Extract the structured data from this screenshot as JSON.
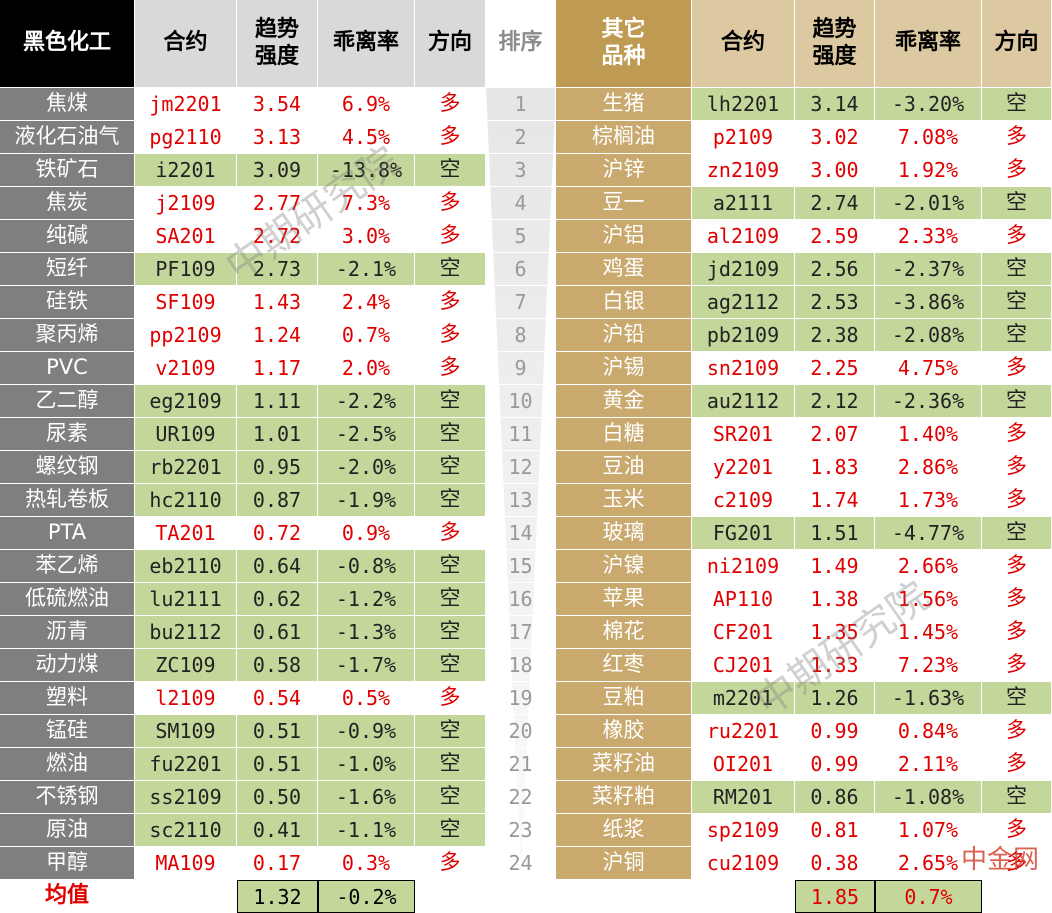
{
  "left": {
    "headers": [
      "黑色化工",
      "合约",
      "趋势\n强度",
      "乖离率",
      "方向"
    ],
    "rows": [
      [
        "焦煤",
        "jm2201",
        "3.54",
        "6.9%",
        "多"
      ],
      [
        "液化石油气",
        "pg2110",
        "3.13",
        "4.5%",
        "多"
      ],
      [
        "铁矿石",
        "i2201",
        "3.09",
        "-13.8%",
        "空"
      ],
      [
        "焦炭",
        "j2109",
        "2.77",
        "7.3%",
        "多"
      ],
      [
        "纯碱",
        "SA201",
        "2.72",
        "3.0%",
        "多"
      ],
      [
        "短纤",
        "PF109",
        "2.73",
        "-2.1%",
        "空"
      ],
      [
        "硅铁",
        "SF109",
        "1.43",
        "2.4%",
        "多"
      ],
      [
        "聚丙烯",
        "pp2109",
        "1.24",
        "0.7%",
        "多"
      ],
      [
        "PVC",
        "v2109",
        "1.17",
        "2.0%",
        "多"
      ],
      [
        "乙二醇",
        "eg2109",
        "1.11",
        "-2.2%",
        "空"
      ],
      [
        "尿素",
        "UR109",
        "1.01",
        "-2.5%",
        "空"
      ],
      [
        "螺纹钢",
        "rb2201",
        "0.95",
        "-2.0%",
        "空"
      ],
      [
        "热轧卷板",
        "hc2110",
        "0.87",
        "-1.9%",
        "空"
      ],
      [
        "PTA",
        "TA201",
        "0.72",
        "0.9%",
        "多"
      ],
      [
        "苯乙烯",
        "eb2110",
        "0.64",
        "-0.8%",
        "空"
      ],
      [
        "低硫燃油",
        "lu2111",
        "0.62",
        "-1.2%",
        "空"
      ],
      [
        "沥青",
        "bu2112",
        "0.61",
        "-1.3%",
        "空"
      ],
      [
        "动力煤",
        "ZC109",
        "0.58",
        "-1.7%",
        "空"
      ],
      [
        "塑料",
        "l2109",
        "0.54",
        "0.5%",
        "多"
      ],
      [
        "锰硅",
        "SM109",
        "0.51",
        "-0.9%",
        "空"
      ],
      [
        "燃油",
        "fu2201",
        "0.51",
        "-1.0%",
        "空"
      ],
      [
        "不锈钢",
        "ss2109",
        "0.50",
        "-1.6%",
        "空"
      ],
      [
        "原油",
        "sc2110",
        "0.41",
        "-1.1%",
        "空"
      ],
      [
        "甲醇",
        "MA109",
        "0.17",
        "0.3%",
        "多"
      ]
    ]
  },
  "rank": {
    "header": "排序",
    "values": [
      1,
      2,
      3,
      4,
      5,
      6,
      7,
      8,
      9,
      10,
      11,
      12,
      13,
      14,
      15,
      16,
      17,
      18,
      19,
      20,
      21,
      22,
      23,
      24
    ]
  },
  "right": {
    "headers": [
      "其它\n品种",
      "合约",
      "趋势\n强度",
      "乖离率",
      "方向"
    ],
    "rows": [
      [
        "生猪",
        "lh2201",
        "3.14",
        "-3.20%",
        "空"
      ],
      [
        "棕榈油",
        "p2109",
        "3.02",
        "7.08%",
        "多"
      ],
      [
        "沪锌",
        "zn2109",
        "3.00",
        "1.92%",
        "多"
      ],
      [
        "豆一",
        "a2111",
        "2.74",
        "-2.01%",
        "空"
      ],
      [
        "沪铝",
        "al2109",
        "2.59",
        "2.33%",
        "多"
      ],
      [
        "鸡蛋",
        "jd2109",
        "2.56",
        "-2.37%",
        "空"
      ],
      [
        "白银",
        "ag2112",
        "2.53",
        "-3.86%",
        "空"
      ],
      [
        "沪铅",
        "pb2109",
        "2.38",
        "-2.08%",
        "空"
      ],
      [
        "沪锡",
        "sn2109",
        "2.25",
        "4.75%",
        "多"
      ],
      [
        "黄金",
        "au2112",
        "2.12",
        "-2.36%",
        "空"
      ],
      [
        "白糖",
        "SR201",
        "2.07",
        "1.40%",
        "多"
      ],
      [
        "豆油",
        "y2201",
        "1.83",
        "2.86%",
        "多"
      ],
      [
        "玉米",
        "c2109",
        "1.74",
        "1.73%",
        "多"
      ],
      [
        "玻璃",
        "FG201",
        "1.51",
        "-4.77%",
        "空"
      ],
      [
        "沪镍",
        "ni2109",
        "1.49",
        "2.66%",
        "多"
      ],
      [
        "苹果",
        "AP110",
        "1.38",
        "1.56%",
        "多"
      ],
      [
        "棉花",
        "CF201",
        "1.35",
        "1.45%",
        "多"
      ],
      [
        "红枣",
        "CJ201",
        "1.33",
        "7.23%",
        "多"
      ],
      [
        "豆粕",
        "m2201",
        "1.26",
        "-1.63%",
        "空"
      ],
      [
        "橡胶",
        "ru2201",
        "0.99",
        "0.84%",
        "多"
      ],
      [
        "菜籽油",
        "OI201",
        "0.99",
        "2.11%",
        "多"
      ],
      [
        "菜籽粕",
        "RM201",
        "0.86",
        "-1.08%",
        "空"
      ],
      [
        "纸浆",
        "sp2109",
        "0.81",
        "1.07%",
        "多"
      ],
      [
        "沪铜",
        "cu2109",
        "0.38",
        "2.65%",
        "多"
      ]
    ]
  },
  "mean": {
    "label": "均值",
    "left": [
      "1.32",
      "-0.2%"
    ],
    "right": [
      "1.85",
      "0.7%"
    ]
  },
  "watermark": "中期研究院",
  "logo": "中金网"
}
